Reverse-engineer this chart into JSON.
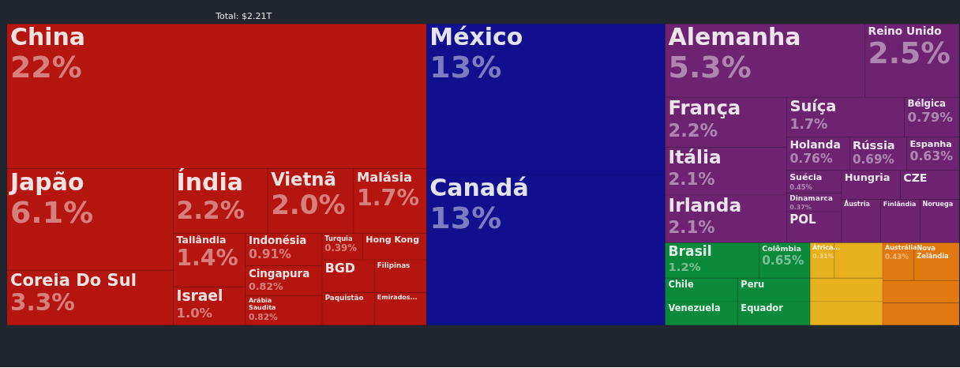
{
  "chart_data": {
    "type": "other",
    "title": "Total: $2.21T",
    "categories": [
      "China",
      "Japão",
      "Coreia Do Sul",
      "Índia",
      "Vietnã",
      "Malásia",
      "Tailândia",
      "Israel",
      "Indonésia",
      "Cingapura",
      "Arábia Saudita",
      "Turquia",
      "Hong Kong",
      "BGD",
      "Filipinas",
      "Paquistão",
      "Emirados...",
      "México",
      "Canadá",
      "Alemanha",
      "Reino Unido",
      "França",
      "Itália",
      "Irlanda",
      "Suíça",
      "Bélgica",
      "Holanda",
      "Rússia",
      "Espanha",
      "Suécia",
      "Dinamarca",
      "POL",
      "Hungria",
      "CZE",
      "Áustria",
      "Finlândia",
      "Noruega",
      "Brasil",
      "Colômbia",
      "Chile",
      "Venezuela",
      "Peru",
      "Equador",
      "África...",
      null,
      null,
      null,
      "Austrália",
      "Nova Zelândia",
      null,
      null
    ],
    "values": [
      22,
      6.1,
      3.3,
      2.2,
      2.0,
      1.7,
      1.4,
      1.0,
      0.91,
      0.82,
      0.82,
      0.39,
      null,
      null,
      null,
      null,
      null,
      13,
      13,
      5.3,
      2.5,
      2.2,
      2.1,
      2.1,
      1.7,
      0.79,
      0.76,
      0.69,
      0.63,
      0.45,
      0.37,
      null,
      null,
      null,
      null,
      null,
      null,
      1.2,
      0.65,
      null,
      null,
      null,
      null,
      0.31,
      null,
      null,
      null,
      0.43,
      null,
      null,
      null
    ],
    "value_labels": [
      "22%",
      "6.1%",
      "3.3%",
      "2.2%",
      "2.0%",
      "1.7%",
      "1.4%",
      "1.0%",
      "0.91%",
      "0.82%",
      "0.82%",
      "0.39%",
      null,
      null,
      null,
      null,
      null,
      "13%",
      "13%",
      "5.3%",
      "2.5%",
      "2.2%",
      "2.1%",
      "2.1%",
      "1.7%",
      "0.79%",
      "0.76%",
      "0.69%",
      "0.63%",
      "0.45%",
      "0.37%",
      null,
      null,
      null,
      null,
      null,
      null,
      "1.2%",
      "0.65%",
      null,
      null,
      null,
      null,
      "0.31%",
      null,
      null,
      null,
      "0.43%",
      null,
      null,
      null
    ],
    "colors": [
      "#b5150f",
      "#b5150f",
      "#b5150f",
      "#b5150f",
      "#b5150f",
      "#b5150f",
      "#b5150f",
      "#b5150f",
      "#b5150f",
      "#b5150f",
      "#b5150f",
      "#b5150f",
      "#b5150f",
      "#b5150f",
      "#b5150f",
      "#b5150f",
      "#b5150f",
      "#10108e",
      "#10108e",
      "#6e2370",
      "#6e2370",
      "#6e2370",
      "#6e2370",
      "#6e2370",
      "#6e2370",
      "#6e2370",
      "#6e2370",
      "#6e2370",
      "#6e2370",
      "#6e2370",
      "#6e2370",
      "#6e2370",
      "#6e2370",
      "#6e2370",
      "#6e2370",
      "#6e2370",
      "#6e2370",
      "#0c8a3b",
      "#0c8a3b",
      "#0c8a3b",
      "#0c8a3b",
      "#0c8a3b",
      "#0c8a3b",
      "#e6b01e",
      "#e6b01e",
      "#e6b01e",
      "#e6b01e",
      "#e07a10",
      "#e07a10",
      "#e07a10",
      "#e07a10"
    ]
  }
}
